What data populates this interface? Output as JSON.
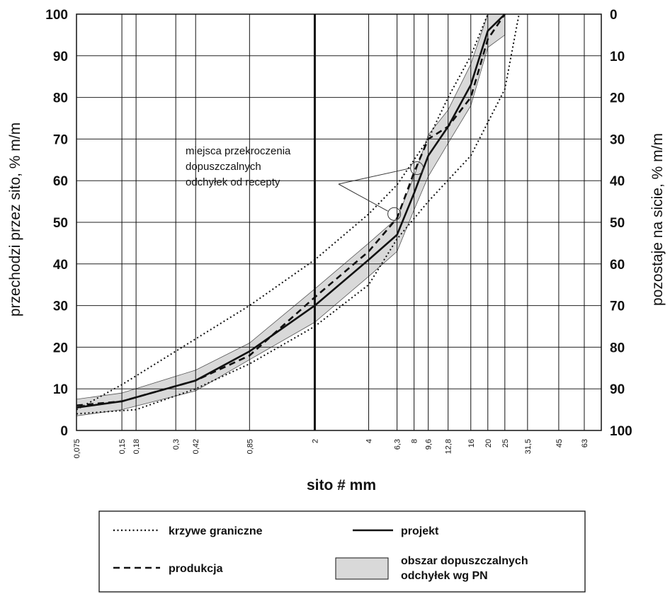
{
  "chart_data": {
    "type": "line",
    "xlabel": "sito # mm",
    "ylabel": "przechodzi przez sito, % m/m",
    "ylabel_right": "pozostaje na sicie, % m/m",
    "ylim": [
      0,
      100
    ],
    "yticks": [
      "0",
      "10",
      "20",
      "30",
      "40",
      "50",
      "60",
      "70",
      "80",
      "90",
      "100"
    ],
    "yticks_right": [
      "100",
      "90",
      "80",
      "70",
      "60",
      "50",
      "40",
      "30",
      "20",
      "10",
      "0"
    ],
    "sieves": [
      "0,075",
      "0,15",
      "0,18",
      "0,3",
      "0,42",
      "0,85",
      "2",
      "4",
      "6,3",
      "8",
      "9,6",
      "12,8",
      "16",
      "20",
      "25",
      "31,5",
      "45",
      "63"
    ],
    "x_positions": [
      0,
      1.6,
      2.1,
      3.5,
      4.2,
      6.1,
      8.4,
      10.3,
      11.3,
      11.9,
      12.4,
      13.1,
      13.9,
      14.5,
      15.1,
      15.9,
      17.0,
      17.9
    ],
    "x_axis_max": 18.5,
    "bold_vertical_line_at_sieve": "2",
    "series": [
      {
        "name": "krzywe graniczne",
        "style": "dotted",
        "points": [
          [
            0,
            4
          ],
          [
            2.1,
            5
          ],
          [
            4.2,
            10
          ],
          [
            6.1,
            16
          ],
          [
            8.4,
            25
          ],
          [
            10.3,
            35
          ],
          [
            11.3,
            46
          ],
          [
            12.4,
            55
          ],
          [
            13.9,
            66
          ],
          [
            15.1,
            82
          ],
          [
            15.6,
            100
          ]
        ]
      },
      {
        "name": "krzywe graniczne",
        "style": "dotted",
        "points": [
          [
            0,
            5
          ],
          [
            1.6,
            11
          ],
          [
            4.2,
            22
          ],
          [
            6.1,
            30
          ],
          [
            8.4,
            41
          ],
          [
            10.3,
            52
          ],
          [
            11.3,
            59
          ],
          [
            12.4,
            70
          ],
          [
            13.1,
            80
          ],
          [
            13.9,
            90
          ],
          [
            14.5,
            100
          ]
        ]
      },
      {
        "name": "projekt",
        "style": "solid",
        "points": [
          [
            0,
            5.5
          ],
          [
            1.6,
            7
          ],
          [
            4.2,
            12
          ],
          [
            6.1,
            19
          ],
          [
            8.4,
            30
          ],
          [
            10.3,
            41
          ],
          [
            11.3,
            47
          ],
          [
            11.9,
            57
          ],
          [
            12.4,
            66
          ],
          [
            13.1,
            73
          ],
          [
            13.9,
            83
          ],
          [
            14.5,
            96
          ],
          [
            15.1,
            100
          ]
        ]
      },
      {
        "name": "produkcja",
        "style": "dashed",
        "points": [
          [
            0,
            6
          ],
          [
            1.6,
            7
          ],
          [
            4.2,
            12
          ],
          [
            6.1,
            18
          ],
          [
            8.4,
            32
          ],
          [
            10.3,
            43
          ],
          [
            11.3,
            51
          ],
          [
            11.9,
            62
          ],
          [
            12.4,
            70
          ],
          [
            13.1,
            73
          ],
          [
            13.9,
            80
          ],
          [
            14.5,
            94
          ],
          [
            15.1,
            100
          ]
        ]
      }
    ],
    "tolerance_band": {
      "name": "obszar dopuszczalnych odchyłek wg PN",
      "upper": [
        [
          0,
          7.5
        ],
        [
          1.6,
          9
        ],
        [
          4.2,
          14.5
        ],
        [
          6.1,
          21
        ],
        [
          8.4,
          34
        ],
        [
          10.3,
          45
        ],
        [
          11.3,
          51
        ],
        [
          11.9,
          61
        ],
        [
          12.4,
          71
        ],
        [
          13.1,
          77
        ],
        [
          13.9,
          88
        ],
        [
          14.5,
          100
        ],
        [
          15.1,
          100
        ]
      ],
      "lower": [
        [
          0,
          3.5
        ],
        [
          1.6,
          5
        ],
        [
          4.2,
          9.5
        ],
        [
          6.1,
          17
        ],
        [
          8.4,
          26
        ],
        [
          10.3,
          37
        ],
        [
          11.3,
          43
        ],
        [
          11.9,
          53
        ],
        [
          12.4,
          61
        ],
        [
          13.1,
          69
        ],
        [
          13.9,
          78
        ],
        [
          14.5,
          92
        ],
        [
          15.1,
          95
        ]
      ]
    },
    "annotation": {
      "text": [
        "miejsca przekroczenia",
        "dopuszczalnych",
        "odchyłek od recepty"
      ],
      "circles": [
        [
          12.0,
          63
        ],
        [
          11.2,
          52
        ]
      ]
    },
    "legend": {
      "placement": "bottom",
      "items": [
        {
          "label": "krzywe graniczne",
          "style": "dotted"
        },
        {
          "label": "projekt",
          "style": "solid"
        },
        {
          "label": "produkcja",
          "style": "dashed"
        },
        {
          "label": "obszar dopuszczalnych\nodchyłek wg PN",
          "style": "band",
          "line1": "obszar dopuszczalnych",
          "line2": "odchyłek wg PN"
        }
      ]
    },
    "grid": true
  }
}
